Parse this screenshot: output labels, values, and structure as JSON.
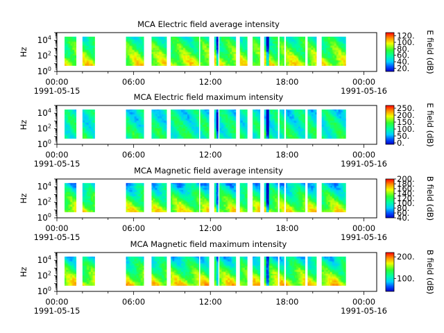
{
  "chart_data": [
    {
      "type": "heatmap",
      "title": "MCA  Electric field average intensity",
      "ylabel": "Hz",
      "xlim": [
        "1991-05-15T00:00",
        "1991-05-16T01:00"
      ],
      "ylim": [
        1,
        100000
      ],
      "yscale": "log",
      "colorbar": {
        "label": "E field (dB)",
        "range": [
          10,
          130
        ],
        "ticks": [
          "20.",
          "40.",
          "60.",
          "80.",
          "100.",
          "120."
        ]
      },
      "x_ticks": [
        "00:00",
        "06:00",
        "12:00",
        "18:00",
        "00:00"
      ],
      "x_tick_dates": [
        "1991-05-15",
        "",
        "",
        "",
        "1991-05-16"
      ],
      "y_ticks": [
        1,
        100,
        10000
      ],
      "data_intervals_ut": [
        [
          0.6,
          1.5
        ],
        [
          2.0,
          3.0
        ],
        [
          5.4,
          6.8
        ],
        [
          7.4,
          8.6
        ],
        [
          8.9,
          11.1
        ],
        [
          11.2,
          11.9
        ],
        [
          12.3,
          12.6
        ],
        [
          12.7,
          14.0
        ],
        [
          14.3,
          14.9
        ],
        [
          15.3,
          15.9
        ],
        [
          16.2,
          17.3
        ],
        [
          17.4,
          17.8
        ],
        [
          17.9,
          19.4
        ],
        [
          19.6,
          20.3
        ],
        [
          20.7,
          22.6
        ]
      ]
    },
    {
      "type": "heatmap",
      "title": "MCA  Electric field maximum intensity",
      "ylabel": "Hz",
      "xlim": [
        "1991-05-15T00:00",
        "1991-05-16T01:00"
      ],
      "ylim": [
        1,
        100000
      ],
      "yscale": "log",
      "colorbar": {
        "label": "E field (dB)",
        "range": [
          -10,
          270
        ],
        "ticks": [
          "0.",
          "50.",
          "100.",
          "150.",
          "200.",
          "250."
        ]
      },
      "x_ticks": [
        "00:00",
        "06:00",
        "12:00",
        "18:00",
        "00:00"
      ],
      "x_tick_dates": [
        "1991-05-15",
        "",
        "",
        "",
        "1991-05-16"
      ],
      "y_ticks": [
        1,
        100,
        10000
      ],
      "data_intervals_ut": [
        [
          0.6,
          1.5
        ],
        [
          2.0,
          3.0
        ],
        [
          5.4,
          6.8
        ],
        [
          7.4,
          8.6
        ],
        [
          8.9,
          11.1
        ],
        [
          11.2,
          11.9
        ],
        [
          12.3,
          12.6
        ],
        [
          12.7,
          14.0
        ],
        [
          14.3,
          14.9
        ],
        [
          15.3,
          15.9
        ],
        [
          16.2,
          17.3
        ],
        [
          17.4,
          17.8
        ],
        [
          17.9,
          19.4
        ],
        [
          19.6,
          20.3
        ],
        [
          20.7,
          22.6
        ]
      ]
    },
    {
      "type": "heatmap",
      "title": "MCA  Magnetic field average intensity",
      "ylabel": "Hz",
      "xlim": [
        "1991-05-15T00:00",
        "1991-05-16T01:00"
      ],
      "ylim": [
        1,
        100000
      ],
      "yscale": "log",
      "colorbar": {
        "label": "B field (dB)",
        "range": [
          40,
          200
        ],
        "ticks": [
          "40.",
          "60.",
          "80.",
          "100.",
          "120.",
          "140.",
          "160.",
          "180.",
          "200."
        ]
      },
      "x_ticks": [
        "00:00",
        "06:00",
        "12:00",
        "18:00",
        "00:00"
      ],
      "x_tick_dates": [
        "1991-05-15",
        "",
        "",
        "",
        "1991-05-16"
      ],
      "y_ticks": [
        1,
        100,
        10000
      ],
      "data_intervals_ut": [
        [
          0.6,
          1.5
        ],
        [
          2.0,
          3.0
        ],
        [
          5.4,
          6.8
        ],
        [
          7.4,
          8.6
        ],
        [
          8.9,
          11.1
        ],
        [
          11.2,
          11.9
        ],
        [
          12.3,
          12.6
        ],
        [
          12.7,
          14.0
        ],
        [
          14.3,
          14.9
        ],
        [
          15.3,
          15.9
        ],
        [
          16.2,
          17.3
        ],
        [
          17.4,
          17.8
        ],
        [
          17.9,
          19.4
        ],
        [
          19.6,
          20.3
        ],
        [
          20.7,
          22.6
        ]
      ]
    },
    {
      "type": "heatmap",
      "title": "MCA  Magnetic field maximum intensity",
      "ylabel": "Hz",
      "xlim": [
        "1991-05-15T00:00",
        "1991-05-16T01:00"
      ],
      "ylim": [
        1,
        100000
      ],
      "yscale": "log",
      "colorbar": {
        "label": "B field (dB)",
        "range": [
          40,
          220
        ],
        "ticks": [
          "100.",
          "200."
        ]
      },
      "x_ticks": [
        "00:00",
        "06:00",
        "12:00",
        "18:00",
        "00:00"
      ],
      "x_tick_dates": [
        "1991-05-15",
        "",
        "",
        "",
        "1991-05-16"
      ],
      "y_ticks": [
        1,
        100,
        10000
      ],
      "data_intervals_ut": [
        [
          0.6,
          1.5
        ],
        [
          2.0,
          3.0
        ],
        [
          5.4,
          6.8
        ],
        [
          7.4,
          8.6
        ],
        [
          8.9,
          11.1
        ],
        [
          11.2,
          11.9
        ],
        [
          12.3,
          12.6
        ],
        [
          12.7,
          14.0
        ],
        [
          14.3,
          14.9
        ],
        [
          15.3,
          15.9
        ],
        [
          16.2,
          17.3
        ],
        [
          17.4,
          17.8
        ],
        [
          17.9,
          19.4
        ],
        [
          19.6,
          20.3
        ],
        [
          20.7,
          22.6
        ]
      ]
    }
  ]
}
